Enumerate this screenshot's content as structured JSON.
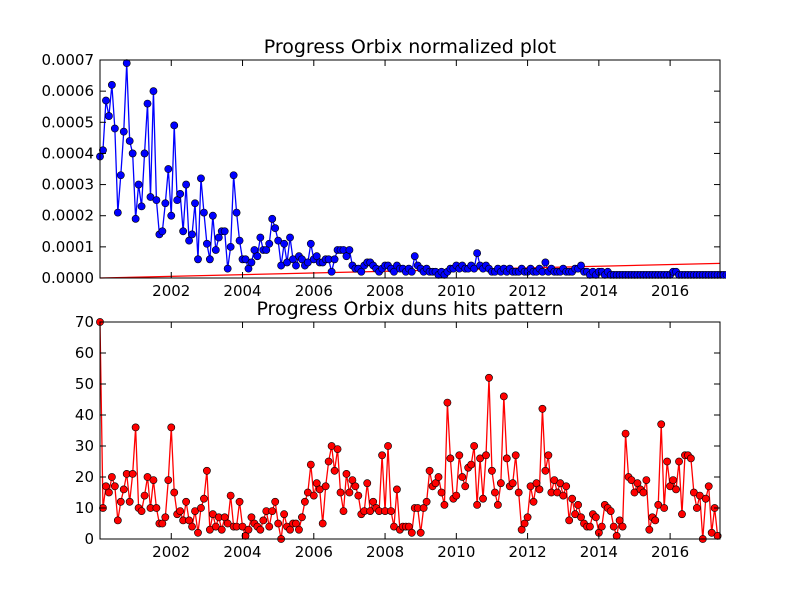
{
  "chart_data": [
    {
      "type": "line",
      "title": "Progress Orbix normalized plot",
      "xlabel": "",
      "ylabel": "",
      "xlim": [
        2000.0,
        2017.4
      ],
      "ylim": [
        0,
        0.0007
      ],
      "x_ticks": [
        2002,
        2004,
        2006,
        2008,
        2010,
        2012,
        2014,
        2016
      ],
      "x_tick_labels": [
        "2002",
        "2004",
        "2006",
        "2008",
        "2010",
        "2012",
        "2014",
        "2016"
      ],
      "y_ticks": [
        0,
        0.0001,
        0.0002,
        0.0003,
        0.0004,
        0.0005,
        0.0006,
        0.0007
      ],
      "y_tick_labels": [
        "0.0000",
        "0.0001",
        "0.0002",
        "0.0003",
        "0.0004",
        "0.0005",
        "0.0006",
        "0.0007"
      ],
      "grid": false,
      "x_start": 2000.0,
      "x_step_months": 1,
      "series": [
        {
          "color": "#0000ff",
          "marker": "circle",
          "values": [
            0.00039,
            0.00041,
            0.00057,
            0.00052,
            0.00062,
            0.00048,
            0.00021,
            0.00033,
            0.00047,
            0.00069,
            0.00044,
            0.0004,
            0.00019,
            0.0003,
            0.00023,
            0.0004,
            0.00056,
            0.00026,
            0.0006,
            0.00025,
            0.00014,
            0.00015,
            0.00024,
            0.00035,
            0.0002,
            0.00049,
            0.00025,
            0.00027,
            0.00015,
            0.0003,
            0.00012,
            0.00014,
            0.00024,
            6e-05,
            0.00032,
            0.00021,
            0.00011,
            6e-05,
            0.0002,
            9e-05,
            0.00013,
            0.00015,
            0.00015,
            3e-05,
            0.0001,
            0.00033,
            0.00021,
            0.00012,
            6e-05,
            6e-05,
            3e-05,
            5e-05,
            9e-05,
            7e-05,
            0.00013,
            9e-05,
            9e-05,
            0.00011,
            0.00019,
            0.00016,
            0.00012,
            4e-05,
            0.00011,
            5e-05,
            0.00013,
            6e-05,
            4e-05,
            7e-05,
            6e-05,
            4e-05,
            5e-05,
            0.00011,
            6e-05,
            7e-05,
            5e-05,
            5e-05,
            6e-05,
            6e-05,
            2e-05,
            6e-05,
            9e-05,
            9e-05,
            9e-05,
            7e-05,
            9e-05,
            4e-05,
            3e-05,
            3e-05,
            2e-05,
            4e-05,
            5e-05,
            5e-05,
            4e-05,
            3e-05,
            2e-05,
            3e-05,
            4e-05,
            4e-05,
            3e-05,
            2e-05,
            4e-05,
            3e-05,
            3e-05,
            2e-05,
            3e-05,
            2e-05,
            7e-05,
            4e-05,
            3e-05,
            2e-05,
            3e-05,
            2e-05,
            2e-05,
            2e-05,
            1e-05,
            2e-05,
            1e-05,
            2e-05,
            3e-05,
            3e-05,
            4e-05,
            3e-05,
            4e-05,
            3e-05,
            3e-05,
            4e-05,
            3e-05,
            8e-05,
            4e-05,
            3e-05,
            4e-05,
            3e-05,
            2e-05,
            2e-05,
            3e-05,
            2e-05,
            3e-05,
            2e-05,
            3e-05,
            2e-05,
            2e-05,
            2e-05,
            3e-05,
            2e-05,
            2e-05,
            3e-05,
            2e-05,
            2e-05,
            3e-05,
            2e-05,
            5e-05,
            2e-05,
            3e-05,
            2e-05,
            2e-05,
            2e-05,
            3e-05,
            2e-05,
            2e-05,
            2e-05,
            3e-05,
            3e-05,
            4e-05,
            2e-05,
            2e-05,
            1e-05,
            2e-05,
            1e-05,
            2e-05,
            2e-05,
            1e-05,
            2e-05,
            1e-05,
            1e-05,
            1e-05,
            1e-05,
            1e-05,
            1e-05,
            1e-05,
            1e-05,
            1e-05,
            1e-05,
            1e-05,
            1e-05,
            1e-05,
            1e-05,
            1e-05,
            1e-05,
            1e-05,
            1e-05,
            1e-05,
            1e-05,
            1e-05,
            2e-05,
            2e-05,
            1e-05,
            1e-05,
            1e-05,
            1e-05,
            1e-05,
            1e-05,
            1e-05,
            1e-05,
            1e-05,
            1e-05,
            1e-05,
            1e-05,
            1e-05,
            1e-05,
            1e-05,
            1e-05,
            1e-05,
            1e-05
          ]
        }
      ],
      "trend_line": {
        "color": "#ff0000",
        "from": [
          2000.0,
          0.0
        ],
        "to": [
          2017.4,
          4.7e-05
        ]
      }
    },
    {
      "type": "line",
      "title": "Progress Orbix duns hits pattern",
      "xlabel": "",
      "ylabel": "",
      "xlim": [
        2000.0,
        2017.4
      ],
      "ylim": [
        0,
        70
      ],
      "x_ticks": [
        2002,
        2004,
        2006,
        2008,
        2010,
        2012,
        2014,
        2016
      ],
      "x_tick_labels": [
        "2002",
        "2004",
        "2006",
        "2008",
        "2010",
        "2012",
        "2014",
        "2016"
      ],
      "y_ticks": [
        0,
        10,
        20,
        30,
        40,
        50,
        60,
        70
      ],
      "y_tick_labels": [
        "0",
        "10",
        "20",
        "30",
        "40",
        "50",
        "60",
        "70"
      ],
      "grid": false,
      "x_start": 2000.0,
      "x_step_months": 1,
      "series": [
        {
          "color": "#ff0000",
          "marker": "circle",
          "values": [
            70,
            10,
            17,
            15,
            20,
            17,
            6,
            12,
            16,
            21,
            12,
            21,
            36,
            10,
            9,
            14,
            20,
            10,
            19,
            10,
            5,
            5,
            7,
            19,
            36,
            15,
            8,
            9,
            6,
            12,
            6,
            4,
            9,
            2,
            10,
            13,
            22,
            3,
            8,
            4,
            7,
            3,
            7,
            5,
            14,
            4,
            4,
            12,
            4,
            1,
            3,
            7,
            5,
            4,
            3,
            6,
            9,
            4,
            9,
            12,
            5,
            0,
            8,
            4,
            3,
            5,
            5,
            3,
            7,
            12,
            15,
            24,
            14,
            18,
            16,
            5,
            17,
            25,
            30,
            22,
            29,
            15,
            9,
            21,
            15,
            19,
            17,
            14,
            8,
            9,
            18,
            9,
            12,
            10,
            9,
            27,
            9,
            30,
            9,
            4,
            16,
            3,
            4,
            4,
            4,
            2,
            10,
            10,
            2,
            10,
            12,
            22,
            17,
            18,
            20,
            15,
            11,
            44,
            26,
            13,
            14,
            27,
            20,
            17,
            23,
            24,
            30,
            11,
            26,
            13,
            27,
            52,
            22,
            15,
            11,
            18,
            46,
            26,
            17,
            18,
            27,
            15,
            3,
            5,
            7,
            17,
            12,
            18,
            16,
            42,
            22,
            27,
            15,
            19,
            15,
            18,
            14,
            17,
            6,
            13,
            8,
            11,
            7,
            5,
            4,
            4,
            8,
            7,
            2,
            4,
            11,
            10,
            9,
            4,
            1,
            6,
            4,
            34,
            20,
            19,
            15,
            18,
            16,
            15,
            19,
            3,
            7,
            6,
            11,
            37,
            10,
            25,
            17,
            19,
            16,
            25,
            8,
            27,
            27,
            26,
            15,
            10,
            14,
            0,
            13,
            17,
            2,
            10,
            1
          ]
        }
      ]
    }
  ]
}
